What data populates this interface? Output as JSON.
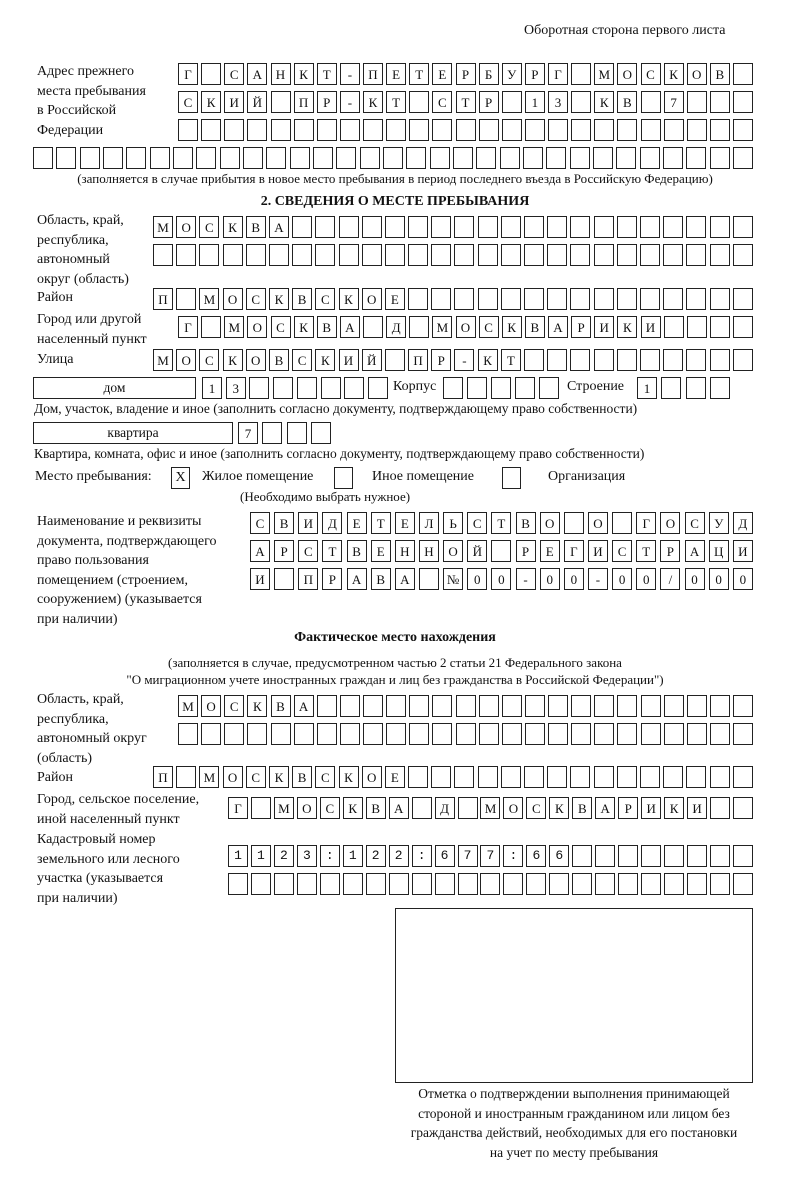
{
  "header": {
    "title": "Оборотная сторона первого листа"
  },
  "previous_address": {
    "label": [
      "Адрес прежнего",
      "места пребывания",
      "в Российской",
      "Федерации"
    ],
    "rows": [
      "Г САНКТ-ПЕТЕРБУРГ МОСКОВ",
      "СКИЙ ПР-КТ СТР 13 КВ 7",
      "",
      ""
    ],
    "note": "(заполняется в случае прибытия в новое место пребывания в период последнего въезда в Российскую Федерацию)"
  },
  "stay": {
    "heading": "2. СВЕДЕНИЯ О МЕСТЕ ПРЕБЫВАНИЯ",
    "region_label": [
      "Область, край,",
      "республика,",
      "автономный",
      "округ (область)"
    ],
    "region_rows": [
      "МОСКВА",
      ""
    ],
    "district_label": "Район",
    "district": "П МОСКВСКОЕ",
    "city_label": [
      "Город или другой",
      "населенный пункт"
    ],
    "city": "Г МОСКВА Д МОСКВАРИКИ",
    "street_label": "Улица",
    "street": "МОСКОВСКИЙ ПР-КТ",
    "house_type": "дом",
    "house": "13",
    "korpus_label": "Корпус",
    "korpus": "",
    "building_label": "Строение",
    "building": "1",
    "house_note": "Дом, участок, владение и иное (заполнить согласно документу, подтверждающему право собственности)",
    "flat_type": "квартира",
    "flat": "7",
    "flat_note": "Квартира, комната, офис и иное (заполнить согласно документу, подтверждающему право собственности)",
    "place_label": "Место пребывания:",
    "place_options": [
      {
        "label": "Жилое помещение",
        "mark": "X"
      },
      {
        "label": "Иное помещение",
        "mark": ""
      },
      {
        "label": "Организация",
        "mark": ""
      }
    ],
    "place_note": "(Необходимо выбрать нужное)",
    "doc_label": [
      "Наименование и реквизиты",
      "документа, подтверждающего",
      "право пользования",
      "помещением (строением,",
      "сооружением) (указывается",
      "при наличии)"
    ],
    "doc_rows": [
      "СВИДЕТЕЛЬСТВО О ГОСУД",
      "АРСТВЕННОЙ РЕГИСТРАЦИ",
      "И ПРАВА №00-00-00/000"
    ]
  },
  "actual": {
    "heading": "Фактическое место нахождения",
    "note": [
      "(заполняется в случае, предусмотренном частью 2 статьи 21 Федерального закона",
      "\"О миграционном учете иностранных граждан и лиц без гражданства в Российской Федерации\")"
    ],
    "region_label": [
      "Область, край,",
      "республика,",
      "автономный округ",
      "(область)"
    ],
    "region_rows": [
      "МОСКВА",
      ""
    ],
    "district_label": "Район",
    "district": "П МОСКВСКОЕ",
    "city_label": [
      "Город, сельское поселение,",
      "иной населенный пункт"
    ],
    "city": "Г МОСКВА Д МОСКВАРИКИ",
    "cadastral_label": [
      "Кадастровый номер",
      "земельного или лесного",
      "участка (указывается",
      "при наличии)"
    ],
    "cadastral_rows": [
      "1123:122:677:66",
      ""
    ]
  },
  "stamp": {
    "caption": [
      "Отметка о подтверждении выполнения принимающей",
      "стороной и иностранным гражданином или лицом без",
      "гражданства действий, необходимых для его постановки",
      "на учет по месту пребывания"
    ]
  }
}
